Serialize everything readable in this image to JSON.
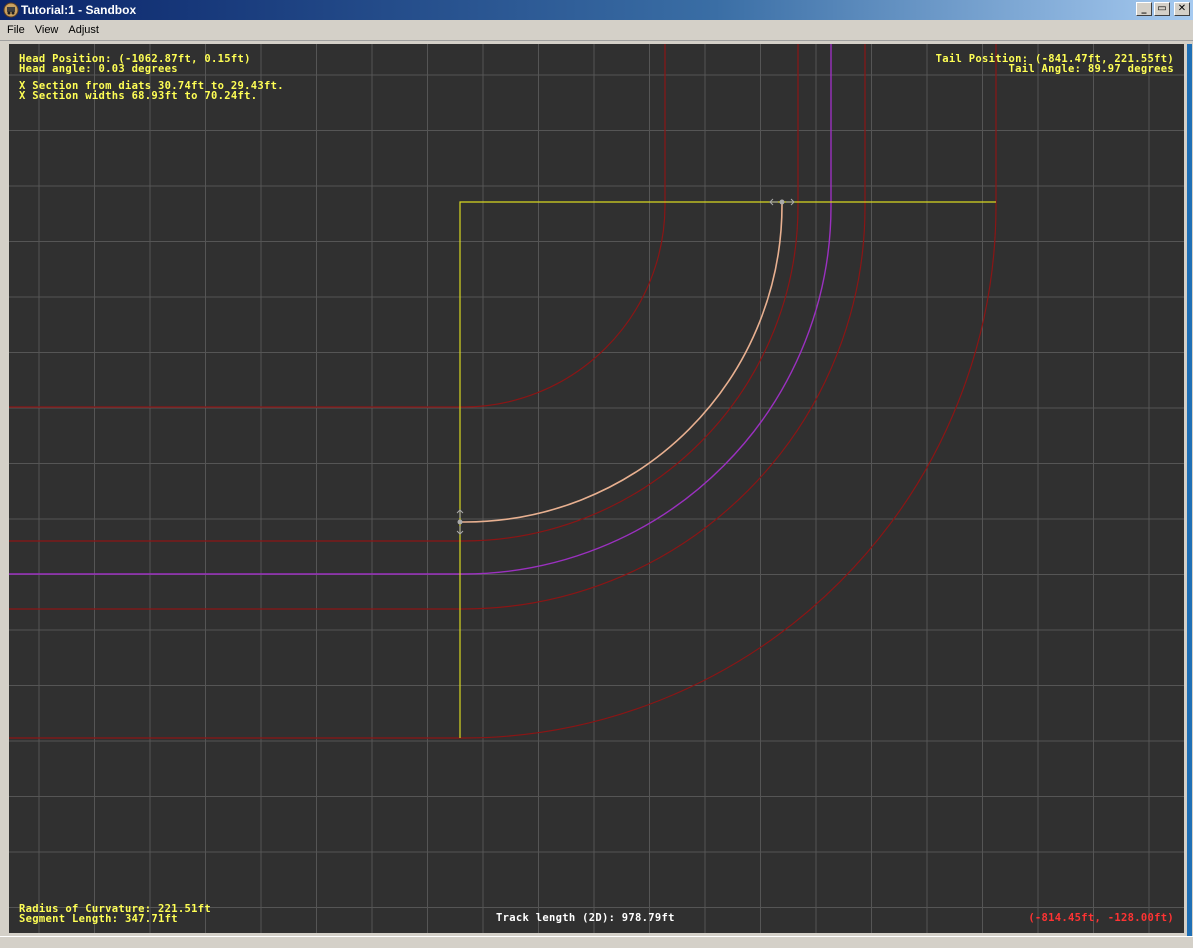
{
  "window": {
    "title": "Tutorial:1 - Sandbox",
    "controls": {
      "minimize": "_",
      "restore": "▭",
      "close": "✕"
    }
  },
  "menu": {
    "items": [
      "File",
      "View",
      "Adjust"
    ]
  },
  "hud": {
    "head_position": "Head Position: (-1062.87ft, 0.15ft)",
    "head_angle": "Head angle: 0.03 degrees",
    "x_section_diats": "X Section from diats 30.74ft to 29.43ft.",
    "x_section_widths": "X Section widths 68.93ft to 70.24ft.",
    "tail_position": "Tail Position: (-841.47ft, 221.55ft)",
    "tail_angle": "Tail Angle: 89.97 degrees",
    "radius_of_curvature": "Radius of Curvature: 221.51ft",
    "segment_length": "Segment Length: 347.71ft",
    "track_length": "Track length (2D): 978.79ft",
    "cursor_position": "(-814.45ft, -128.00ft)"
  },
  "colors": {
    "background": "#303030",
    "grid": "#555555",
    "edge_lines": "#8b1515",
    "center_line": "#9b30c0",
    "guide_box": "#d8d820",
    "selected_rail": "#e8b090",
    "handles": "#aaaaaa",
    "hud_text": "#ffff55",
    "cursor_text": "#ff3333"
  },
  "icons": {
    "app": "train-app-icon",
    "handle": "drag-handle-icon"
  }
}
